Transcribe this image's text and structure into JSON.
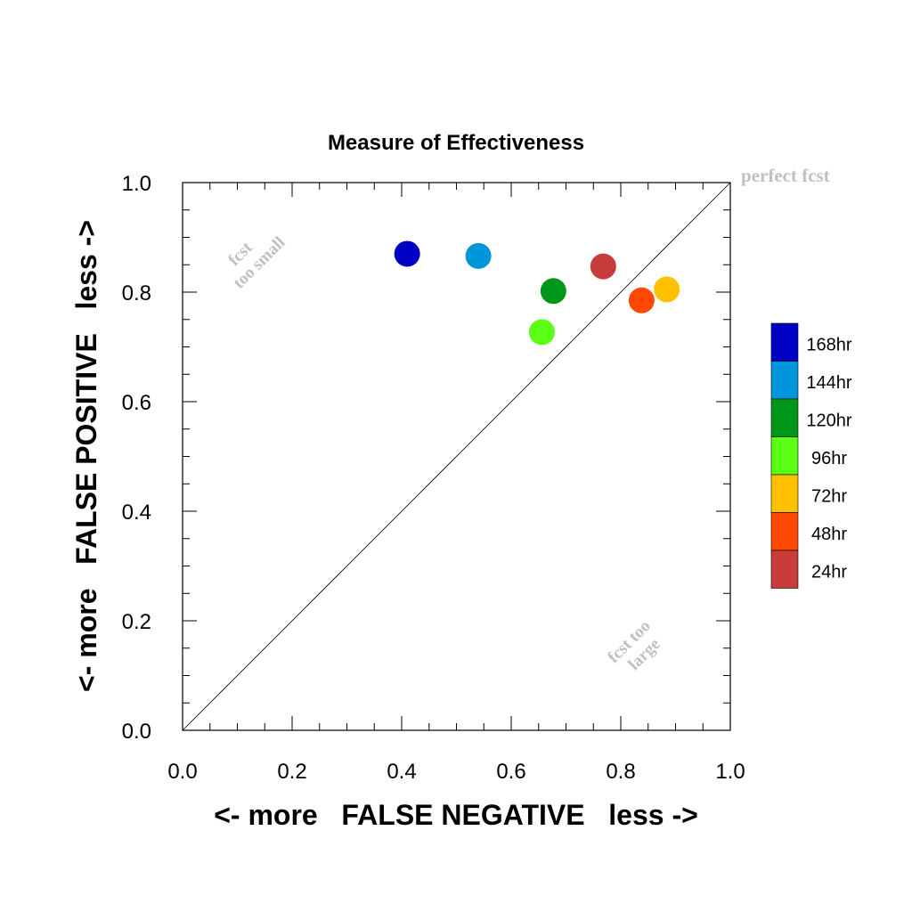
{
  "chart_data": {
    "type": "scatter",
    "title": "Measure of Effectiveness",
    "xlabel": "<- more   FALSE NEGATIVE   less ->",
    "ylabel": "<- more   FALSE POSITIVE   less ->",
    "xlim": [
      0.0,
      1.0
    ],
    "ylim": [
      0.0,
      1.0
    ],
    "xticks": [
      "0.0",
      "0.2",
      "0.4",
      "0.6",
      "0.8",
      "1.0"
    ],
    "yticks": [
      "0.0",
      "0.2",
      "0.4",
      "0.6",
      "0.8",
      "1.0"
    ],
    "grid": false,
    "reference_line": {
      "from": [
        0,
        0
      ],
      "to": [
        1,
        1
      ]
    },
    "annotations": {
      "top_right": "perfect fcst",
      "upper_left_1": "fcst",
      "upper_left_2": "too small",
      "lower_right_1": "fcst too",
      "lower_right_2": "large"
    },
    "legend_position": "right",
    "series": [
      {
        "name": "168hr",
        "color": "#0000c4",
        "x": 0.41,
        "y": 0.87
      },
      {
        "name": "144hr",
        "color": "#0096dc",
        "x": 0.54,
        "y": 0.866
      },
      {
        "name": "120hr",
        "color": "#00961a",
        "x": 0.677,
        "y": 0.802
      },
      {
        "name": "96hr",
        "color": "#5aff14",
        "x": 0.656,
        "y": 0.727
      },
      {
        "name": "72hr",
        "color": "#ffc000",
        "x": 0.884,
        "y": 0.805
      },
      {
        "name": "48hr",
        "color": "#ff4800",
        "x": 0.838,
        "y": 0.785
      },
      {
        "name": "24hr",
        "color": "#c83c3c",
        "x": 0.768,
        "y": 0.847
      }
    ]
  }
}
